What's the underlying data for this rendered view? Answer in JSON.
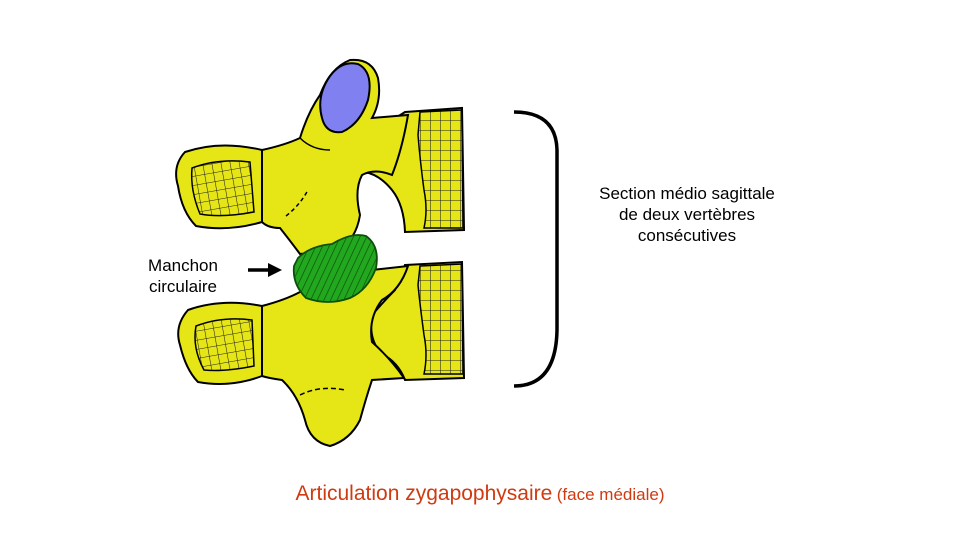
{
  "labels": {
    "manchon": [
      "Manchon",
      "circulaire"
    ],
    "section": [
      "Section médio sagittale",
      "de deux vertèbres",
      "consécutives"
    ]
  },
  "caption": {
    "main": "Articulation zygapophysaire",
    "sub": "(face médiale)"
  },
  "colors": {
    "bone": "#e6e617",
    "cartilage": "#8080f0",
    "capsule": "#22a81e",
    "caption": "#d03a10",
    "outline": "#000000"
  },
  "icons": [
    "arrow-right-icon",
    "brace-icon",
    "vertebra-illustration"
  ]
}
